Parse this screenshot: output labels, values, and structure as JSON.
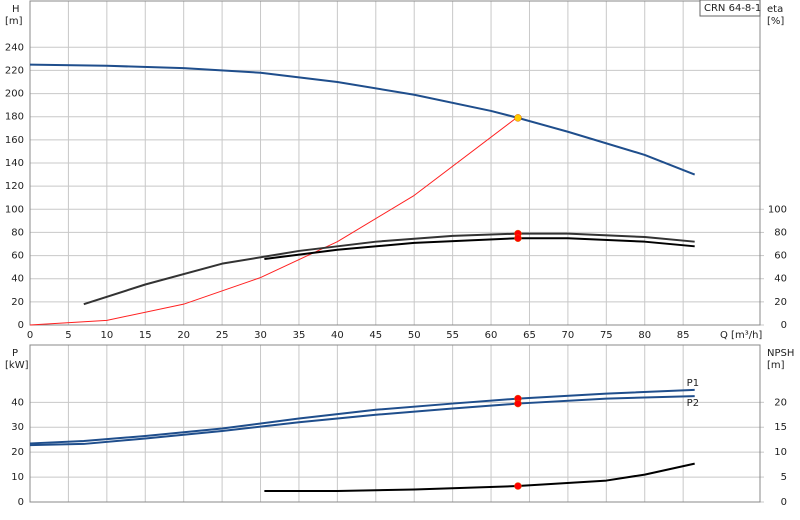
{
  "chart_data": [
    {
      "type": "line",
      "legend_text": "CRN 64-8-1",
      "y_label": "H",
      "y_unit": "[m]",
      "y2_label": "eta",
      "y2_unit": "[%]",
      "x_label": "Q [m³/h]",
      "xlim": [
        0,
        95
      ],
      "xticks": [
        0,
        5,
        10,
        15,
        20,
        25,
        30,
        35,
        40,
        45,
        50,
        55,
        60,
        65,
        70,
        75,
        80,
        85
      ],
      "ylim": [
        0,
        280
      ],
      "yticks": [
        0,
        20,
        40,
        60,
        80,
        100,
        120,
        140,
        160,
        180,
        200,
        220,
        240
      ],
      "y2lim": [
        0,
        280
      ],
      "y2ticks": [
        0,
        20,
        40,
        60,
        80,
        100
      ],
      "grid": true,
      "series": [
        {
          "color": "#1f4e8c",
          "x": [
            0,
            10,
            20,
            30,
            40,
            50,
            60,
            63.5,
            70,
            80,
            86.5
          ],
          "values": [
            225,
            224,
            222,
            218,
            210,
            199,
            185,
            179,
            167,
            147,
            130
          ]
        },
        {
          "color": "#ff2020",
          "x": [
            0,
            10,
            20,
            30,
            40,
            50,
            63.5
          ],
          "values": [
            0,
            4,
            18,
            41,
            72,
            112,
            180
          ]
        },
        {
          "color": "#333333",
          "axis": "y2",
          "x": [
            7,
            15,
            25,
            35,
            45,
            55,
            63.5,
            70,
            80,
            86.5
          ],
          "values": [
            18,
            35,
            53,
            64,
            72,
            77,
            79,
            79,
            76,
            72
          ]
        },
        {
          "color": "#000000",
          "axis": "y2",
          "x": [
            30.5,
            40,
            50,
            63.5,
            70,
            80,
            86.5
          ],
          "values": [
            57,
            65,
            71,
            75,
            75,
            72,
            68
          ]
        }
      ],
      "markers": [
        {
          "color": "#ffcc00",
          "x": 63.5,
          "y": 179
        },
        {
          "color": "#ff0000",
          "axis": "y2",
          "x": 63.5,
          "y": 79
        },
        {
          "color": "#ff0000",
          "axis": "y2",
          "x": 63.5,
          "y": 75
        }
      ]
    },
    {
      "type": "line",
      "y_label": "P",
      "y_unit": "[kW]",
      "y2_label": "NPSH",
      "y2_unit": "[m]",
      "xlim": [
        0,
        95
      ],
      "xticks": [
        0,
        5,
        10,
        15,
        20,
        25,
        30,
        35,
        40,
        45,
        50,
        55,
        60,
        65,
        70,
        75,
        80,
        85
      ],
      "ylim": [
        0,
        63
      ],
      "yticks": [
        0,
        10,
        20,
        30,
        40
      ],
      "y2lim": [
        0,
        31.5
      ],
      "y2ticks": [
        0,
        5,
        10,
        15,
        20
      ],
      "grid": true,
      "series": [
        {
          "name": "P1",
          "color": "#1f4e8c",
          "x": [
            0,
            7,
            15,
            25,
            35,
            45,
            55,
            63.5,
            75,
            86.5
          ],
          "values": [
            23.5,
            24.5,
            26.5,
            29.5,
            33.5,
            37,
            39.5,
            41.5,
            43.5,
            45
          ]
        },
        {
          "name": "P2",
          "color": "#1f4e8c",
          "x": [
            0,
            7,
            15,
            25,
            35,
            45,
            55,
            63.5,
            75,
            86.5
          ],
          "values": [
            22.8,
            23.3,
            25.5,
            28.5,
            32,
            35,
            37.5,
            39.5,
            41.5,
            42.5
          ]
        },
        {
          "color": "#000000",
          "axis": "y2",
          "x": [
            30.5,
            40,
            50,
            63.5,
            75,
            80,
            86.5
          ],
          "values": [
            2.2,
            2.2,
            2.5,
            3.2,
            4.3,
            5.5,
            7.7
          ]
        }
      ],
      "markers": [
        {
          "color": "#ff0000",
          "x": 63.5,
          "y": 41.5
        },
        {
          "color": "#ff0000",
          "x": 63.5,
          "y": 39.5
        },
        {
          "color": "#ff0000",
          "axis": "y2",
          "x": 63.5,
          "y": 3.2
        }
      ]
    }
  ]
}
